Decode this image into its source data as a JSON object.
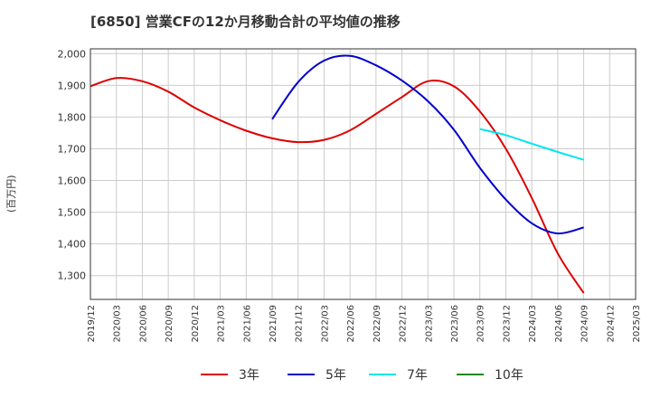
{
  "title": "[6850]  営業CFの12か月移動合計の平均値の推移",
  "y_unit": "(百万円)",
  "chart_data": {
    "type": "line",
    "title": "[6850]  営業CFの12か月移動合計の平均値の推移",
    "ylabel": "(百万円)",
    "xlabel": "",
    "ylim": [
      1225,
      2015
    ],
    "yticks": [
      1300,
      1400,
      1500,
      1600,
      1700,
      1800,
      1900,
      2000
    ],
    "ytick_labels": [
      "1,300",
      "1,400",
      "1,500",
      "1,600",
      "1,700",
      "1,800",
      "1,900",
      "2,000"
    ],
    "xticks": [
      "2019/12",
      "2020/03",
      "2020/06",
      "2020/09",
      "2020/12",
      "2021/03",
      "2021/06",
      "2021/09",
      "2021/12",
      "2022/03",
      "2022/06",
      "2022/09",
      "2022/12",
      "2023/03",
      "2023/06",
      "2023/09",
      "2023/12",
      "2024/03",
      "2024/06",
      "2024/09",
      "2024/12",
      "2025/03"
    ],
    "grid": true,
    "legend_position": "bottom",
    "series": [
      {
        "name": "3年",
        "color": "#dd0000",
        "x": [
          "2019/12",
          "2020/03",
          "2020/06",
          "2020/09",
          "2020/12",
          "2021/03",
          "2021/06",
          "2021/09",
          "2021/12",
          "2022/03",
          "2022/06",
          "2022/09",
          "2022/12",
          "2023/03",
          "2023/06",
          "2023/09",
          "2023/12",
          "2024/03",
          "2024/06",
          "2024/09"
        ],
        "values": [
          1897,
          1923,
          1913,
          1880,
          1830,
          1790,
          1757,
          1733,
          1721,
          1728,
          1758,
          1810,
          1863,
          1913,
          1897,
          1818,
          1700,
          1545,
          1370,
          1245
        ]
      },
      {
        "name": "5年",
        "color": "#0000cc",
        "x": [
          "2021/09",
          "2021/12",
          "2022/03",
          "2022/06",
          "2022/09",
          "2022/12",
          "2023/03",
          "2023/06",
          "2023/09",
          "2023/12",
          "2024/03",
          "2024/06",
          "2024/09"
        ],
        "values": [
          1793,
          1910,
          1978,
          1993,
          1963,
          1915,
          1850,
          1760,
          1640,
          1540,
          1465,
          1433,
          1452
        ]
      },
      {
        "name": "7年",
        "color": "#00e5ee",
        "x": [
          "2023/09",
          "2023/12",
          "2024/03",
          "2024/06",
          "2024/09"
        ],
        "values": [
          1762,
          1743,
          1716,
          1690,
          1665
        ]
      },
      {
        "name": "10年",
        "color": "#228822",
        "x": [],
        "values": []
      }
    ]
  }
}
